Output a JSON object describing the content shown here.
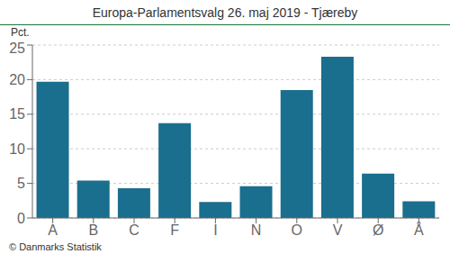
{
  "chart_data": {
    "type": "bar",
    "title": "Europa-Parlamentsvalg 26. maj 2019 - Tjæreby",
    "categories": [
      "A",
      "B",
      "C",
      "F",
      "I",
      "N",
      "O",
      "V",
      "Ø",
      "Å"
    ],
    "values": [
      19.7,
      5.4,
      4.3,
      13.7,
      2.3,
      4.6,
      18.5,
      23.3,
      6.4,
      2.4
    ],
    "color": "#1a6e8e",
    "y_label": "Pct.",
    "annotations": [
      "© Danmarks Statistik"
    ],
    "ylim": [
      0,
      25
    ],
    "yticks": [
      0,
      5,
      10,
      15,
      20,
      25
    ],
    "grid": true
  }
}
